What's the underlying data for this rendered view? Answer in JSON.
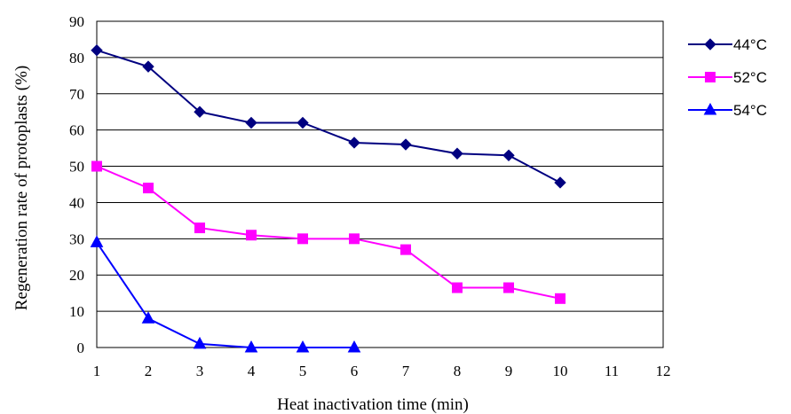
{
  "chart_data": {
    "type": "line",
    "xlabel": "Heat inactivation time (min)",
    "ylabel": "Regeneration rate of protoplasts (%)",
    "xlim": [
      1,
      12
    ],
    "ylim": [
      0,
      90
    ],
    "x_ticks": [
      1,
      2,
      3,
      4,
      5,
      6,
      7,
      8,
      9,
      10,
      11,
      12
    ],
    "y_ticks": [
      0,
      10,
      20,
      30,
      40,
      50,
      60,
      70,
      80,
      90
    ],
    "grid": "horizontal",
    "legend_position": "right",
    "series": [
      {
        "name": "44°C",
        "color": "#000080",
        "marker": "diamond",
        "x": [
          1,
          2,
          3,
          4,
          5,
          6,
          7,
          8,
          9,
          10
        ],
        "y": [
          82,
          77.5,
          65,
          62,
          62,
          56.5,
          56,
          53.5,
          53,
          45.5
        ]
      },
      {
        "name": "52°C",
        "color": "#ff00ff",
        "marker": "square",
        "x": [
          1,
          2,
          3,
          4,
          5,
          6,
          7,
          8,
          9,
          10
        ],
        "y": [
          50,
          44,
          33,
          31,
          30,
          30,
          27,
          16.5,
          16.5,
          13.5
        ]
      },
      {
        "name": "54°C",
        "color": "#0000ff",
        "marker": "triangle",
        "x": [
          1,
          2,
          3,
          4,
          5,
          6
        ],
        "y": [
          29,
          8,
          1,
          0,
          0,
          0
        ]
      }
    ]
  }
}
